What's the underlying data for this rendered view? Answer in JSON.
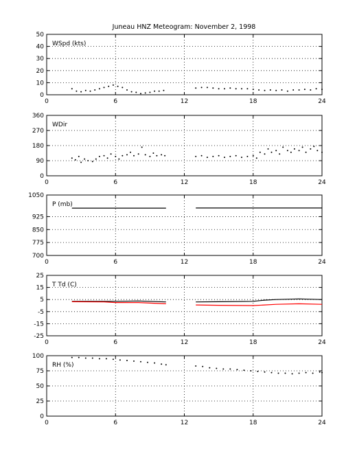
{
  "title": "Juneau HNZ Meteogram:  November  2, 1998",
  "chart_data": [
    {
      "id": "wspd",
      "type": "scatter",
      "label": "WSpd (kts)",
      "xlim": [
        0,
        24
      ],
      "ylim": [
        0,
        50
      ],
      "x_ticks": [
        "0",
        "6",
        "12",
        "18",
        "24"
      ],
      "y_ticks": [
        "0",
        "10",
        "20",
        "30",
        "40",
        "50"
      ],
      "grid": true,
      "series": [
        {
          "color": "#000000",
          "points": [
            [
              2.2,
              5
            ],
            [
              2.6,
              3
            ],
            [
              3.0,
              2.5
            ],
            [
              3.4,
              3.5
            ],
            [
              3.8,
              3
            ],
            [
              4.2,
              4
            ],
            [
              4.6,
              5
            ],
            [
              5.0,
              6
            ],
            [
              5.4,
              7
            ],
            [
              5.8,
              8
            ],
            [
              6.2,
              7
            ],
            [
              6.6,
              6
            ],
            [
              7.0,
              4
            ],
            [
              7.4,
              2.5
            ],
            [
              7.8,
              2
            ],
            [
              8.2,
              1
            ],
            [
              8.6,
              1.5
            ],
            [
              9.0,
              2
            ],
            [
              9.4,
              3
            ],
            [
              9.8,
              3
            ],
            [
              10.2,
              3.5
            ],
            [
              13.0,
              5.5
            ],
            [
              13.5,
              6
            ],
            [
              14.0,
              6
            ],
            [
              14.5,
              5.5
            ],
            [
              15.0,
              5
            ],
            [
              15.5,
              5
            ],
            [
              16.0,
              5.5
            ],
            [
              16.5,
              5
            ],
            [
              17.0,
              5
            ],
            [
              17.5,
              5
            ],
            [
              18.0,
              4.5
            ],
            [
              18.5,
              4
            ],
            [
              19.0,
              3.5
            ],
            [
              19.5,
              4
            ],
            [
              20.0,
              3.5
            ],
            [
              20.5,
              4
            ],
            [
              21.0,
              3
            ],
            [
              21.5,
              4
            ],
            [
              22.0,
              4
            ],
            [
              22.5,
              4.5
            ],
            [
              23.0,
              4
            ],
            [
              23.5,
              5
            ],
            [
              24.0,
              4.5
            ]
          ]
        }
      ]
    },
    {
      "id": "wdir",
      "type": "scatter",
      "label": "WDir",
      "xlim": [
        0,
        24
      ],
      "ylim": [
        0,
        360
      ],
      "x_ticks": [
        "0",
        "6",
        "12",
        "18",
        "24"
      ],
      "y_ticks": [
        "0",
        "90",
        "180",
        "270",
        "360"
      ],
      "grid": true,
      "series": [
        {
          "color": "#000000",
          "points": [
            [
              2.2,
              105
            ],
            [
              2.5,
              95
            ],
            [
              2.8,
              115
            ],
            [
              3.0,
              80
            ],
            [
              3.3,
              100
            ],
            [
              3.6,
              90
            ],
            [
              4.0,
              85
            ],
            [
              4.3,
              100
            ],
            [
              4.6,
              115
            ],
            [
              5.0,
              120
            ],
            [
              5.3,
              105
            ],
            [
              5.6,
              130
            ],
            [
              6.0,
              115
            ],
            [
              6.3,
              100
            ],
            [
              6.6,
              120
            ],
            [
              7.0,
              125
            ],
            [
              7.3,
              140
            ],
            [
              7.6,
              120
            ],
            [
              8.0,
              130
            ],
            [
              8.3,
              170
            ],
            [
              8.6,
              125
            ],
            [
              9.0,
              115
            ],
            [
              9.3,
              135
            ],
            [
              9.6,
              120
            ],
            [
              10.0,
              125
            ],
            [
              10.3,
              120
            ],
            [
              13.0,
              115
            ],
            [
              13.5,
              120
            ],
            [
              14.0,
              110
            ],
            [
              14.5,
              115
            ],
            [
              15.0,
              120
            ],
            [
              15.5,
              110
            ],
            [
              16.0,
              115
            ],
            [
              16.5,
              120
            ],
            [
              17.0,
              110
            ],
            [
              17.5,
              115
            ],
            [
              18.0,
              120
            ],
            [
              18.3,
              105
            ],
            [
              18.6,
              140
            ],
            [
              19.0,
              130
            ],
            [
              19.3,
              160
            ],
            [
              19.6,
              140
            ],
            [
              20.0,
              150
            ],
            [
              20.3,
              130
            ],
            [
              20.6,
              170
            ],
            [
              21.0,
              150
            ],
            [
              21.3,
              140
            ],
            [
              21.6,
              160
            ],
            [
              22.0,
              150
            ],
            [
              22.3,
              170
            ],
            [
              22.6,
              140
            ],
            [
              23.0,
              160
            ],
            [
              23.3,
              175
            ],
            [
              23.6,
              150
            ],
            [
              24.0,
              140
            ]
          ]
        }
      ]
    },
    {
      "id": "pres",
      "type": "line",
      "label": "P (mb)",
      "xlim": [
        0,
        24
      ],
      "ylim": [
        700,
        1050
      ],
      "x_ticks": [
        "0",
        "6",
        "12",
        "18",
        "24"
      ],
      "y_ticks": [
        "700",
        "775",
        "850",
        "925",
        "1050"
      ],
      "y_tick_values": [
        700,
        775,
        850,
        925,
        1050
      ],
      "grid": true,
      "series": [
        {
          "color": "#000000",
          "points": [
            [
              2.2,
              974
            ],
            [
              6,
              974
            ],
            [
              10.4,
              974
            ]
          ]
        },
        {
          "color": "#000000",
          "points": [
            [
              13.0,
              975
            ],
            [
              18,
              975
            ],
            [
              24,
              975
            ]
          ]
        }
      ]
    },
    {
      "id": "temp",
      "type": "line",
      "label": "T Td (C)",
      "xlim": [
        0,
        24
      ],
      "ylim": [
        -25,
        25
      ],
      "x_ticks": [
        "0",
        "6",
        "12",
        "18",
        "24"
      ],
      "y_ticks": [
        "-25",
        "-15",
        "-5",
        "5",
        "15",
        "25"
      ],
      "y_tick_values": [
        -25,
        -15,
        -5,
        5,
        15,
        25
      ],
      "grid": true,
      "series": [
        {
          "color": "#000000",
          "points": [
            [
              2.2,
              3.5
            ],
            [
              5,
              3.5
            ],
            [
              6,
              3.5
            ],
            [
              8,
              3.8
            ],
            [
              10.4,
              3.0
            ]
          ]
        },
        {
          "color": "#000000",
          "points": [
            [
              13.0,
              3.0
            ],
            [
              15,
              3.2
            ],
            [
              18,
              3.5
            ],
            [
              19,
              4.5
            ],
            [
              20,
              5
            ],
            [
              22,
              5.5
            ],
            [
              24,
              5
            ]
          ]
        },
        {
          "color": "#ff0000",
          "points": [
            [
              2.2,
              3.2
            ],
            [
              5,
              3.0
            ],
            [
              6,
              2.5
            ],
            [
              8,
              2.5
            ],
            [
              10.4,
              1.5
            ]
          ]
        },
        {
          "color": "#ff0000",
          "points": [
            [
              13.0,
              0.5
            ],
            [
              15,
              0.2
            ],
            [
              18,
              0
            ],
            [
              19,
              0.5
            ],
            [
              20,
              1.0
            ],
            [
              22,
              1.5
            ],
            [
              24,
              1.0
            ]
          ]
        }
      ]
    },
    {
      "id": "rh",
      "type": "scatter",
      "label": "RH (%)",
      "xlim": [
        0,
        24
      ],
      "ylim": [
        0,
        100
      ],
      "x_ticks": [
        "0",
        "6",
        "12",
        "18",
        "24"
      ],
      "y_ticks": [
        "0",
        "25",
        "50",
        "75",
        "100"
      ],
      "grid": true,
      "series": [
        {
          "color": "#000000",
          "points": [
            [
              2.2,
              97
            ],
            [
              2.8,
              97
            ],
            [
              3.4,
              96
            ],
            [
              4.0,
              96
            ],
            [
              4.6,
              95
            ],
            [
              5.2,
              95
            ],
            [
              5.8,
              94
            ],
            [
              6.4,
              93
            ],
            [
              7.0,
              92
            ],
            [
              7.6,
              91
            ],
            [
              8.2,
              90
            ],
            [
              8.8,
              89
            ],
            [
              9.4,
              88
            ],
            [
              10.0,
              86
            ],
            [
              10.4,
              85
            ],
            [
              13.0,
              83
            ],
            [
              13.6,
              82
            ],
            [
              14.2,
              80
            ],
            [
              14.8,
              79
            ],
            [
              15.4,
              78
            ],
            [
              16.0,
              78
            ],
            [
              16.6,
              77
            ],
            [
              17.2,
              76
            ],
            [
              17.8,
              75
            ],
            [
              18.4,
              74
            ],
            [
              19.0,
              73
            ],
            [
              19.6,
              72
            ],
            [
              20.2,
              71
            ],
            [
              20.8,
              71
            ],
            [
              21.4,
              70
            ],
            [
              22.0,
              71
            ],
            [
              22.6,
              72
            ],
            [
              23.2,
              71
            ],
            [
              23.8,
              73
            ],
            [
              24.0,
              72
            ]
          ]
        }
      ]
    }
  ]
}
